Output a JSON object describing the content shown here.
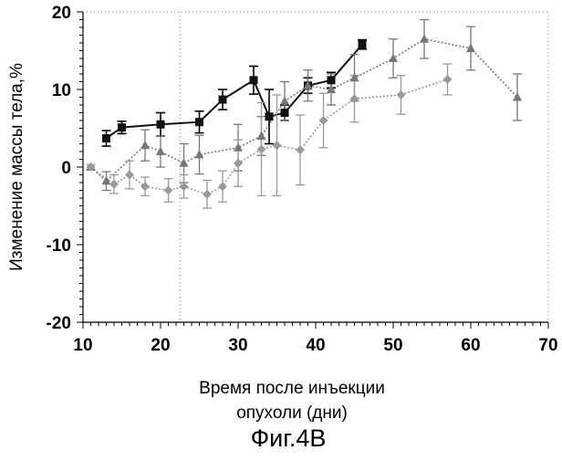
{
  "chart_data": {
    "type": "scatter",
    "title": "",
    "caption": "Фиг.4B",
    "xlabel_line1": "Время после инъекции",
    "xlabel_line2": "опухоли (дни)",
    "ylabel": "Изменение массы тела,%",
    "xlim": [
      10,
      70
    ],
    "ylim": [
      -20,
      20
    ],
    "x_ticks": [
      10,
      20,
      30,
      40,
      50,
      60,
      70
    ],
    "y_ticks": [
      -20,
      -10,
      0,
      10,
      20
    ],
    "x_minor_step": 1,
    "y_minor_step": 1,
    "grid": false,
    "reference_line_x": 22.5,
    "series": [
      {
        "marker": "square",
        "color": "#111111",
        "line": "solid",
        "x": [
          13,
          15,
          20,
          25,
          28,
          32,
          34,
          36,
          39,
          42,
          46
        ],
        "y": [
          3.7,
          5.1,
          5.5,
          5.8,
          8.7,
          11.2,
          6.5,
          7.0,
          10.5,
          11.2,
          15.8
        ],
        "err": [
          1.0,
          0.8,
          1.5,
          1.4,
          1.3,
          1.8,
          3.5,
          1.0,
          1.0,
          1.0,
          0.6
        ]
      },
      {
        "marker": "triangle",
        "color": "#777777",
        "line": "dotted",
        "x": [
          11,
          13,
          18,
          20,
          23,
          25,
          30,
          33,
          36,
          39,
          42,
          45,
          50,
          54,
          60,
          66
        ],
        "y": [
          0,
          -1.8,
          2.8,
          2.0,
          0.5,
          1.6,
          2.5,
          4.0,
          8.5,
          10.5,
          10.0,
          11.5,
          14.0,
          16.5,
          15.3,
          9.0
        ],
        "err": [
          0.3,
          1.2,
          2.0,
          2.0,
          2.5,
          2.5,
          3.0,
          2.5,
          2.5,
          2.0,
          2.0,
          3.0,
          2.5,
          2.5,
          2.8,
          3.0
        ]
      },
      {
        "marker": "diamond",
        "color": "#999999",
        "line": "dotted",
        "x": [
          11,
          14,
          16,
          18,
          21,
          23,
          26,
          28,
          30,
          33,
          35,
          38,
          41,
          45,
          51,
          57
        ],
        "y": [
          0,
          -2.2,
          -1.0,
          -2.5,
          -3.0,
          -2.5,
          -3.5,
          -2.5,
          0.5,
          2.3,
          2.8,
          2.2,
          6.0,
          8.8,
          9.3,
          11.3
        ],
        "err": [
          0.3,
          1.2,
          1.8,
          1.2,
          1.5,
          1.5,
          1.8,
          2.0,
          3.0,
          6.0,
          6.5,
          4.5,
          3.5,
          3.0,
          2.5,
          2.0
        ]
      }
    ]
  }
}
